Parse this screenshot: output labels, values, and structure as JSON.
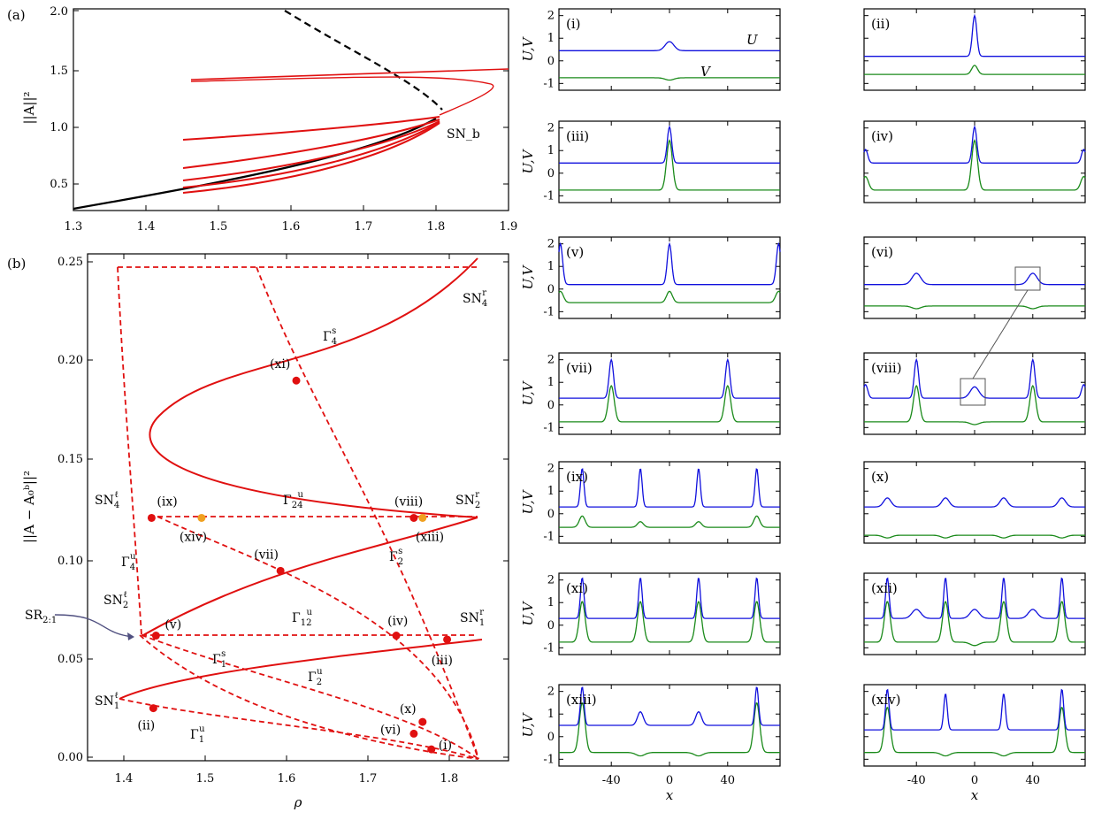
{
  "figure": {
    "panel_a_label": "(a)",
    "panel_b_label": "(b)",
    "colors": {
      "red": "#e01010",
      "black": "#000000",
      "blue": "#1010dd",
      "green": "#1a8a1a",
      "orange": "#f0a020"
    }
  },
  "panel_a": {
    "ylabel": "||A||²",
    "sn_label": "SN_b",
    "x_ticks": [
      "1.3",
      "1.4",
      "1.5",
      "1.6",
      "1.7",
      "1.8",
      "1.9"
    ],
    "y_ticks": [
      "0.5",
      "1.0",
      "1.5",
      "2.0"
    ]
  },
  "panel_b": {
    "xlabel": "ρ",
    "ylabel": "||A − A₀ᵇ||²",
    "x_ticks": [
      "1.4",
      "1.5",
      "1.6",
      "1.7",
      "1.8"
    ],
    "y_ticks": [
      "0.00",
      "0.05",
      "0.10",
      "0.15",
      "0.20",
      "0.25"
    ],
    "labels": [
      {
        "id": "sn4r",
        "text": "SN",
        "sub": "4",
        "sup": "r"
      },
      {
        "id": "gamma4s",
        "text": "Γ",
        "sub": "4",
        "sup": "s"
      },
      {
        "id": "sn4l",
        "text": "SN",
        "sub": "4",
        "sup": "ℓ"
      },
      {
        "id": "gamma24u",
        "text": "Γ",
        "sub": "24",
        "sup": "u"
      },
      {
        "id": "sn2r",
        "text": "SN",
        "sub": "2",
        "sup": "r"
      },
      {
        "id": "gamma4u",
        "text": "Γ",
        "sub": "4",
        "sup": "u"
      },
      {
        "id": "gamma2s",
        "text": "Γ",
        "sub": "2",
        "sup": "s"
      },
      {
        "id": "sn2l",
        "text": "SN",
        "sub": "2",
        "sup": "ℓ"
      },
      {
        "id": "gamma12u",
        "text": "Γ",
        "sub": "12",
        "sup": "u"
      },
      {
        "id": "sn1r",
        "text": "SN",
        "sub": "1",
        "sup": "r"
      },
      {
        "id": "sr21",
        "text": "SR",
        "sub": "2:1",
        "sup": ""
      },
      {
        "id": "gamma1s",
        "text": "Γ",
        "sub": "1",
        "sup": "s"
      },
      {
        "id": "gamma2u",
        "text": "Γ",
        "sub": "2",
        "sup": "u"
      },
      {
        "id": "sn1l",
        "text": "SN",
        "sub": "1",
        "sup": "ℓ"
      },
      {
        "id": "gamma1u",
        "text": "Γ",
        "sub": "1",
        "sup": "u"
      }
    ],
    "points": [
      {
        "label": "(i)",
        "rho": 1.762,
        "norm": 0.004,
        "color": "red"
      },
      {
        "label": "(ii)",
        "rho": 1.445,
        "norm": 0.025,
        "color": "red"
      },
      {
        "label": "(iii)",
        "rho": 1.78,
        "norm": 0.06,
        "color": "red"
      },
      {
        "label": "(iv)",
        "rho": 1.722,
        "norm": 0.062,
        "color": "red"
      },
      {
        "label": "(v)",
        "rho": 1.448,
        "norm": 0.062,
        "color": "red"
      },
      {
        "label": "(vi)",
        "rho": 1.742,
        "norm": 0.012,
        "color": "red"
      },
      {
        "label": "(vii)",
        "rho": 1.59,
        "norm": 0.095,
        "color": "red"
      },
      {
        "label": "(viii)",
        "rho": 1.742,
        "norm": 0.122,
        "color": "red"
      },
      {
        "label": "(ix)",
        "rho": 1.443,
        "norm": 0.122,
        "color": "red"
      },
      {
        "label": "(x)",
        "rho": 1.752,
        "norm": 0.018,
        "color": "red"
      },
      {
        "label": "(xi)",
        "rho": 1.608,
        "norm": 0.192,
        "color": "red"
      },
      {
        "label": "(xiii)",
        "rho": 1.752,
        "norm": 0.122,
        "color": "orange"
      },
      {
        "label": "(xiv)",
        "rho": 1.5,
        "norm": 0.122,
        "color": "orange"
      }
    ]
  },
  "profiles": {
    "ylabel": "U,V",
    "xlabel": "x",
    "u_label": "U",
    "v_label": "V",
    "x_ticks": [
      "-40",
      "0",
      "40"
    ],
    "y_ticks": [
      "2",
      "1",
      "0",
      "-1"
    ],
    "panels": [
      {
        "label": "(i)"
      },
      {
        "label": "(ii)"
      },
      {
        "label": "(iii)"
      },
      {
        "label": "(iv)"
      },
      {
        "label": "(v)"
      },
      {
        "label": "(vi)"
      },
      {
        "label": "(vii)"
      },
      {
        "label": "(viii)"
      },
      {
        "label": "(ix)"
      },
      {
        "label": "(x)"
      },
      {
        "label": "(xi)"
      },
      {
        "label": "(xii)"
      },
      {
        "label": "(xiii)"
      },
      {
        "label": "(xiv)"
      }
    ]
  }
}
